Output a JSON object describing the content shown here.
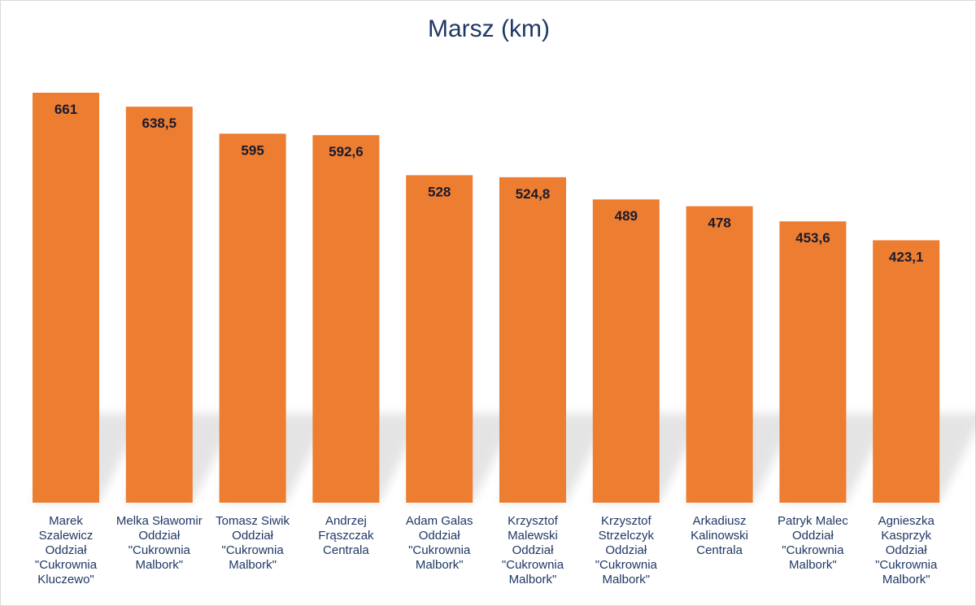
{
  "chart_data": {
    "type": "bar",
    "title": "Marsz (km)",
    "xlabel": "",
    "ylabel": "",
    "ylim": [
      0,
      700
    ],
    "grid": false,
    "legend": "none",
    "bar_color": "#ed7d31",
    "categories": [
      [
        "Marek",
        "Szalewicz",
        "Oddział",
        "\"Cukrownia",
        "Kluczewo\""
      ],
      [
        "Melka Sławomir",
        "Oddział",
        "\"Cukrownia",
        "Malbork\""
      ],
      [
        "Tomasz Siwik",
        "Oddział",
        "\"Cukrownia",
        "Malbork\""
      ],
      [
        "Andrzej",
        "Frąszczak",
        "Centrala"
      ],
      [
        "Adam Galas",
        "Oddział",
        "\"Cukrownia",
        "Malbork\""
      ],
      [
        "Krzysztof",
        "Malewski",
        "Oddział",
        "\"Cukrownia",
        "Malbork\""
      ],
      [
        "Krzysztof",
        "Strzelczyk",
        "Oddział",
        "\"Cukrownia",
        "Malbork\""
      ],
      [
        "Arkadiusz",
        "Kalinowski",
        "Centrala"
      ],
      [
        "Patryk Malec",
        "Oddział",
        "\"Cukrownia",
        "Malbork\""
      ],
      [
        "Agnieszka",
        "Kasprzyk",
        "Oddział",
        "\"Cukrownia",
        "Malbork\""
      ]
    ],
    "values": [
      661,
      638.5,
      595,
      592.6,
      528,
      524.8,
      489,
      478,
      453.6,
      423.1
    ],
    "data_labels": [
      "661",
      "638,5",
      "595",
      "592,6",
      "528",
      "524,8",
      "489",
      "478",
      "453,6",
      "423,1"
    ]
  }
}
